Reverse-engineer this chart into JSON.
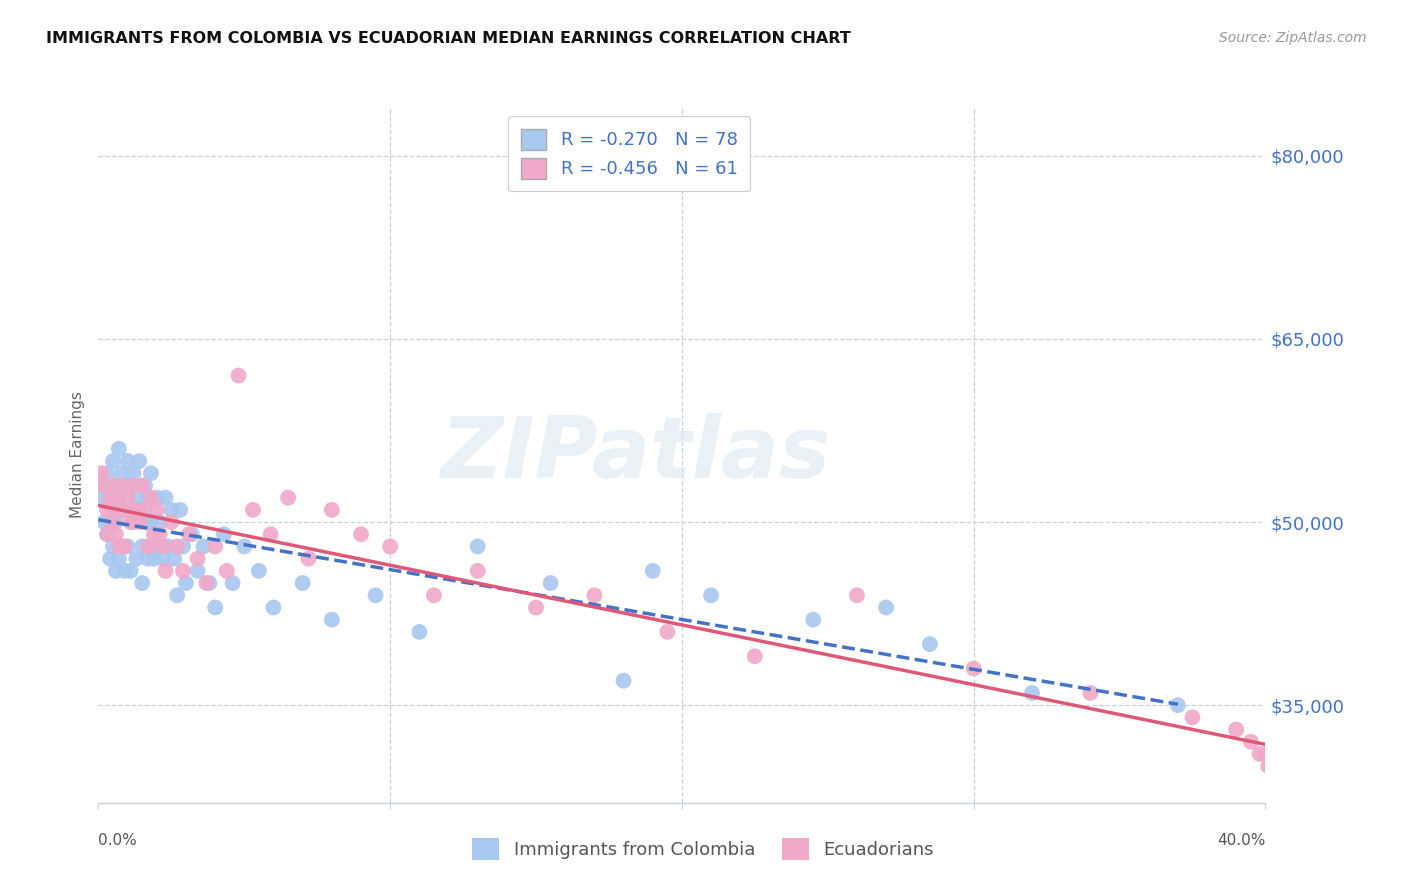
{
  "title": "IMMIGRANTS FROM COLOMBIA VS ECUADORIAN MEDIAN EARNINGS CORRELATION CHART",
  "source": "Source: ZipAtlas.com",
  "ylabel": "Median Earnings",
  "yticks": [
    35000,
    50000,
    65000,
    80000
  ],
  "ytick_labels": [
    "$35,000",
    "$50,000",
    "$65,000",
    "$80,000"
  ],
  "xmin": 0.0,
  "xmax": 0.4,
  "ymin": 27000,
  "ymax": 84000,
  "colombia_color": "#a8c8f0",
  "ecuador_color": "#f0a8c8",
  "colombia_line_color": "#4472c4",
  "ecuador_line_color": "#e05878",
  "colombia_R": -0.27,
  "colombia_N": 78,
  "ecuador_R": -0.456,
  "ecuador_N": 61,
  "legend_label_colombia": "Immigrants from Colombia",
  "legend_label_ecuador": "Ecuadorians",
  "watermark": "ZIPatlas",
  "colombia_x": [
    0.001,
    0.002,
    0.002,
    0.003,
    0.003,
    0.004,
    0.004,
    0.004,
    0.005,
    0.005,
    0.005,
    0.006,
    0.006,
    0.006,
    0.007,
    0.007,
    0.007,
    0.008,
    0.008,
    0.008,
    0.009,
    0.009,
    0.01,
    0.01,
    0.01,
    0.011,
    0.011,
    0.012,
    0.012,
    0.013,
    0.013,
    0.014,
    0.014,
    0.015,
    0.015,
    0.016,
    0.016,
    0.017,
    0.017,
    0.018,
    0.018,
    0.019,
    0.02,
    0.02,
    0.021,
    0.022,
    0.023,
    0.024,
    0.025,
    0.026,
    0.027,
    0.028,
    0.029,
    0.03,
    0.032,
    0.034,
    0.036,
    0.038,
    0.04,
    0.043,
    0.046,
    0.05,
    0.055,
    0.06,
    0.07,
    0.08,
    0.095,
    0.11,
    0.13,
    0.155,
    0.18,
    0.21,
    0.245,
    0.285,
    0.19,
    0.27,
    0.32,
    0.37
  ],
  "colombia_y": [
    53000,
    52000,
    50000,
    54000,
    49000,
    52000,
    50000,
    47000,
    55000,
    51000,
    48000,
    53000,
    50000,
    46000,
    56000,
    52000,
    47000,
    54000,
    51000,
    48000,
    53000,
    46000,
    55000,
    51000,
    48000,
    53000,
    46000,
    54000,
    50000,
    52000,
    47000,
    55000,
    51000,
    48000,
    45000,
    53000,
    50000,
    52000,
    47000,
    54000,
    50000,
    47000,
    52000,
    48000,
    50000,
    47000,
    52000,
    48000,
    51000,
    47000,
    44000,
    51000,
    48000,
    45000,
    49000,
    46000,
    48000,
    45000,
    43000,
    49000,
    45000,
    48000,
    46000,
    43000,
    45000,
    42000,
    44000,
    41000,
    48000,
    45000,
    37000,
    44000,
    42000,
    40000,
    46000,
    43000,
    36000,
    35000
  ],
  "ecuador_x": [
    0.001,
    0.002,
    0.003,
    0.003,
    0.004,
    0.005,
    0.005,
    0.006,
    0.006,
    0.007,
    0.007,
    0.008,
    0.009,
    0.009,
    0.01,
    0.011,
    0.012,
    0.013,
    0.014,
    0.015,
    0.016,
    0.017,
    0.018,
    0.019,
    0.02,
    0.021,
    0.022,
    0.023,
    0.025,
    0.027,
    0.029,
    0.031,
    0.034,
    0.037,
    0.04,
    0.044,
    0.048,
    0.053,
    0.059,
    0.065,
    0.072,
    0.08,
    0.09,
    0.1,
    0.115,
    0.13,
    0.15,
    0.17,
    0.195,
    0.225,
    0.26,
    0.3,
    0.34,
    0.375,
    0.39,
    0.395,
    0.398,
    0.4,
    0.401,
    0.402,
    0.403
  ],
  "ecuador_y": [
    54000,
    53000,
    51000,
    49000,
    52000,
    53000,
    50000,
    52000,
    49000,
    51000,
    48000,
    53000,
    51000,
    48000,
    52000,
    50000,
    53000,
    51000,
    50000,
    53000,
    51000,
    48000,
    52000,
    49000,
    51000,
    49000,
    48000,
    46000,
    50000,
    48000,
    46000,
    49000,
    47000,
    45000,
    48000,
    46000,
    62000,
    51000,
    49000,
    52000,
    47000,
    51000,
    49000,
    48000,
    44000,
    46000,
    43000,
    44000,
    41000,
    39000,
    44000,
    38000,
    36000,
    34000,
    33000,
    32000,
    31000,
    31000,
    30000,
    30000,
    29000
  ]
}
